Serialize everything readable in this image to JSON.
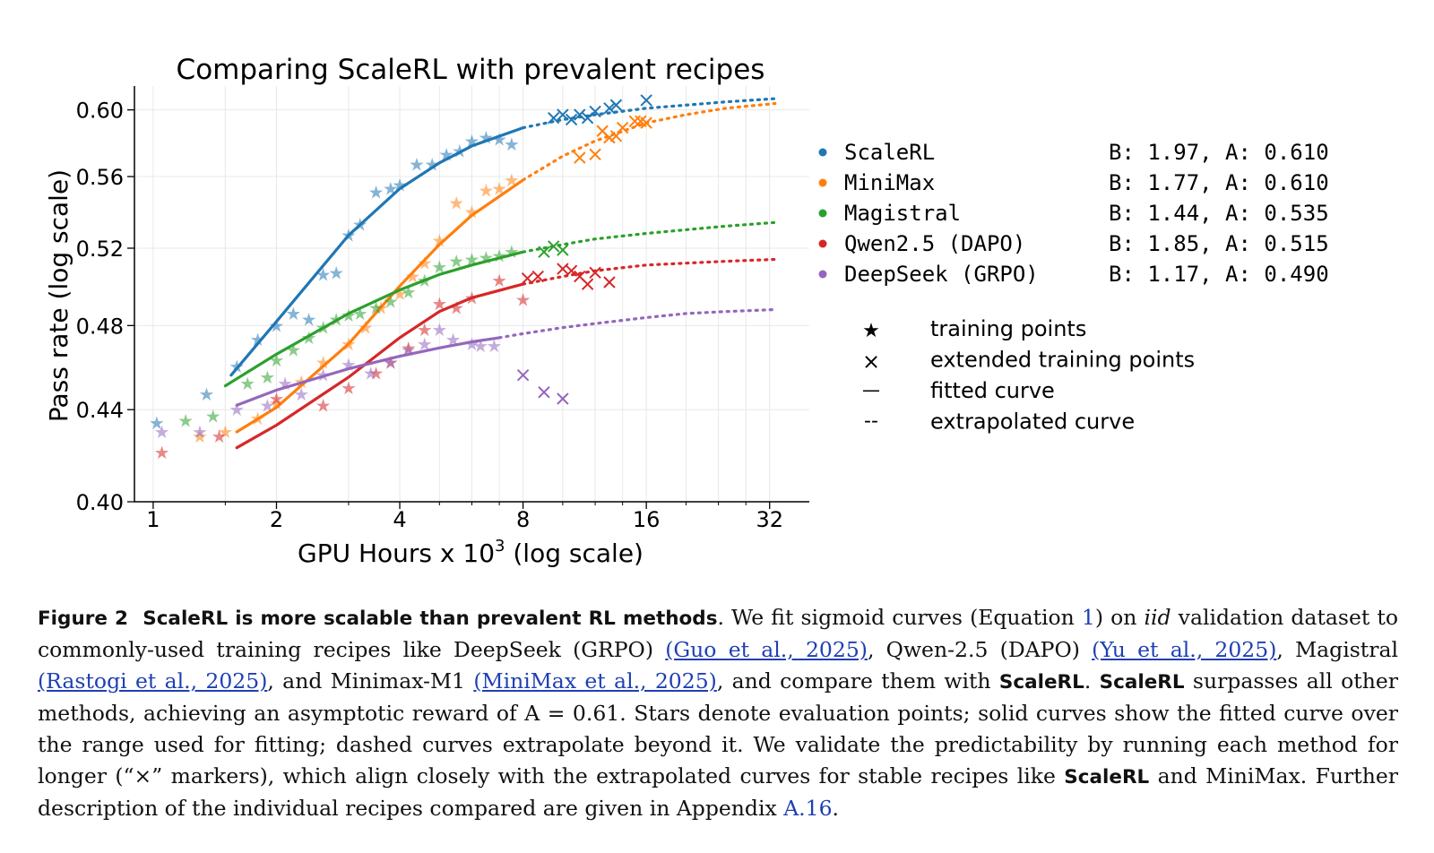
{
  "chart_data": {
    "type": "scatter",
    "title": "Comparing ScaleRL with prevalent recipes",
    "xlabel": "GPU Hours x 10",
    "xlabel_sup": "3",
    "xlabel_suffix": " (log scale)",
    "ylabel": "Pass rate (log scale)",
    "x_scale": "log2",
    "y_scale": "log",
    "xlim": [
      0.9,
      40
    ],
    "ylim": [
      0.4,
      0.615
    ],
    "x_ticks": [
      1,
      2,
      4,
      8,
      16,
      32
    ],
    "x_tick_labels": [
      "1",
      "2",
      "4",
      "8",
      "16",
      "32"
    ],
    "y_ticks": [
      0.4,
      0.44,
      0.48,
      0.52,
      0.56,
      0.6
    ],
    "y_tick_labels": [
      "0.40",
      "0.44",
      "0.48",
      "0.52",
      "0.56",
      "0.60"
    ],
    "grid": true,
    "legend_position": "right",
    "series": [
      {
        "name": "ScaleRL",
        "params": "B: 1.97, A: 0.610",
        "color": "#1f77b4",
        "fit_range": [
          1.55,
          8
        ],
        "extrap_end": 33,
        "fit_curve": {
          "x": [
            1.55,
            2,
            3,
            4,
            5,
            6,
            8
          ],
          "y": [
            0.456,
            0.482,
            0.527,
            0.553,
            0.568,
            0.578,
            0.589
          ]
        },
        "extrap_curve": {
          "x": [
            8,
            10,
            12,
            16,
            20,
            25,
            33
          ],
          "y": [
            0.589,
            0.594,
            0.597,
            0.601,
            0.603,
            0.605,
            0.607
          ]
        },
        "training_points": {
          "x": [
            1.02,
            1.35,
            1.6,
            1.8,
            2.0,
            2.2,
            2.4,
            2.6,
            2.8,
            3.0,
            3.2,
            3.5,
            3.8,
            4.0,
            4.4,
            4.8,
            5.2,
            5.6,
            6.0,
            6.5,
            7.0,
            7.5
          ],
          "y": [
            0.434,
            0.447,
            0.46,
            0.473,
            0.48,
            0.486,
            0.483,
            0.506,
            0.507,
            0.527,
            0.533,
            0.551,
            0.553,
            0.555,
            0.567,
            0.567,
            0.573,
            0.575,
            0.581,
            0.583,
            0.582,
            0.579
          ]
        },
        "extended_points": {
          "x": [
            9.5,
            10,
            10.5,
            11,
            11.5,
            12,
            13,
            13.5,
            16
          ],
          "y": [
            0.595,
            0.597,
            0.594,
            0.597,
            0.595,
            0.599,
            0.601,
            0.603,
            0.606
          ]
        }
      },
      {
        "name": "MiniMax",
        "params": "B: 1.77, A: 0.610",
        "color": "#ff7f0e",
        "fit_range": [
          1.6,
          8
        ],
        "extrap_end": 33,
        "fit_curve": {
          "x": [
            1.6,
            2,
            3,
            4,
            5,
            6,
            8
          ],
          "y": [
            0.43,
            0.441,
            0.471,
            0.5,
            0.522,
            0.538,
            0.558
          ]
        },
        "extrap_curve": {
          "x": [
            8,
            10,
            12,
            16,
            20,
            25,
            33
          ],
          "y": [
            0.558,
            0.572,
            0.581,
            0.592,
            0.597,
            0.601,
            0.604
          ]
        },
        "training_points": {
          "x": [
            1.3,
            1.5,
            1.8,
            2.0,
            2.3,
            2.6,
            3.0,
            3.3,
            3.6,
            4.0,
            4.3,
            4.6,
            5.0,
            5.5,
            6.0,
            6.5,
            7.0,
            7.5
          ],
          "y": [
            0.428,
            0.43,
            0.436,
            0.443,
            0.453,
            0.462,
            0.471,
            0.479,
            0.489,
            0.496,
            0.505,
            0.512,
            0.524,
            0.545,
            0.54,
            0.552,
            0.553,
            0.558
          ]
        },
        "extended_points": {
          "x": [
            11,
            12,
            12.5,
            13,
            13.5,
            14,
            15,
            15.5,
            16
          ],
          "y": [
            0.571,
            0.573,
            0.587,
            0.583,
            0.584,
            0.589,
            0.593,
            0.593,
            0.592
          ]
        }
      },
      {
        "name": "Magistral",
        "params": "B: 1.44, A: 0.535",
        "color": "#2ca02c",
        "fit_range": [
          1.5,
          8
        ],
        "extrap_end": 33,
        "fit_curve": {
          "x": [
            1.5,
            2,
            3,
            4,
            5,
            6,
            8
          ],
          "y": [
            0.451,
            0.466,
            0.486,
            0.498,
            0.506,
            0.511,
            0.518
          ]
        },
        "extrap_curve": {
          "x": [
            8,
            10,
            12,
            16,
            20,
            25,
            33
          ],
          "y": [
            0.518,
            0.522,
            0.525,
            0.528,
            0.53,
            0.532,
            0.534
          ]
        },
        "training_points": {
          "x": [
            1.2,
            1.4,
            1.7,
            1.9,
            2.0,
            2.2,
            2.4,
            2.6,
            2.8,
            3.0,
            3.2,
            3.5,
            3.8,
            4.2,
            4.6,
            5.0,
            5.5,
            6.0,
            6.5,
            7.0,
            7.5
          ],
          "y": [
            0.435,
            0.437,
            0.452,
            0.455,
            0.463,
            0.468,
            0.474,
            0.479,
            0.483,
            0.485,
            0.486,
            0.489,
            0.492,
            0.497,
            0.503,
            0.51,
            0.513,
            0.514,
            0.515,
            0.516,
            0.518
          ]
        },
        "extended_points": {
          "x": [
            9,
            9.5,
            10
          ],
          "y": [
            0.518,
            0.521,
            0.519
          ]
        }
      },
      {
        "name": "Qwen2.5 (DAPO)",
        "params": "B: 1.85, A: 0.515",
        "color": "#d62728",
        "fit_range": [
          1.6,
          8
        ],
        "extrap_end": 33,
        "fit_curve": {
          "x": [
            1.6,
            2,
            3,
            4,
            5,
            6,
            8
          ],
          "y": [
            0.423,
            0.433,
            0.455,
            0.474,
            0.487,
            0.494,
            0.501
          ]
        },
        "extrap_curve": {
          "x": [
            8,
            10,
            12,
            16,
            20,
            25,
            33
          ],
          "y": [
            0.501,
            0.505,
            0.508,
            0.511,
            0.512,
            0.513,
            0.514
          ]
        },
        "training_points": {
          "x": [
            1.05,
            1.45,
            2.0,
            2.6,
            3.0,
            3.5,
            3.8,
            4.2,
            4.6,
            5.0,
            5.5,
            6.0,
            7.0,
            8.0
          ],
          "y": [
            0.421,
            0.428,
            0.445,
            0.442,
            0.45,
            0.457,
            0.462,
            0.469,
            0.478,
            0.491,
            0.489,
            0.494,
            0.503,
            0.493
          ]
        },
        "extended_points": {
          "x": [
            8.2,
            8.7,
            10,
            10.5,
            11,
            11.5,
            12,
            13
          ],
          "y": [
            0.504,
            0.505,
            0.509,
            0.508,
            0.505,
            0.501,
            0.507,
            0.502
          ]
        }
      },
      {
        "name": "DeepSeek (GRPO)",
        "params": "B: 1.17, A: 0.490",
        "color": "#9467bd",
        "fit_range": [
          1.6,
          7
        ],
        "extrap_end": 33,
        "fit_curve": {
          "x": [
            1.6,
            2,
            3,
            4,
            5,
            6,
            7
          ],
          "y": [
            0.442,
            0.449,
            0.459,
            0.465,
            0.469,
            0.472,
            0.474
          ]
        },
        "extrap_curve": {
          "x": [
            7,
            8,
            10,
            12,
            16,
            20,
            25,
            33
          ],
          "y": [
            0.474,
            0.476,
            0.479,
            0.481,
            0.484,
            0.486,
            0.487,
            0.488
          ]
        },
        "training_points": {
          "x": [
            1.05,
            1.3,
            1.6,
            1.9,
            2.1,
            2.3,
            2.6,
            3.0,
            3.4,
            3.8,
            4.2,
            4.6,
            5.0,
            5.4,
            6.0,
            6.3,
            6.8
          ],
          "y": [
            0.43,
            0.43,
            0.44,
            0.442,
            0.452,
            0.447,
            0.456,
            0.461,
            0.457,
            0.462,
            0.468,
            0.471,
            0.478,
            0.473,
            0.471,
            0.47,
            0.47
          ]
        },
        "extended_points": {
          "x": [
            8,
            9,
            10
          ],
          "y": [
            0.456,
            0.448,
            0.445
          ]
        }
      }
    ],
    "marker_legend": [
      {
        "symbol": "★",
        "label": "training points"
      },
      {
        "symbol": "×",
        "label": "extended training points"
      },
      {
        "symbol": "—",
        "label": "fitted curve"
      },
      {
        "symbol": "--",
        "label": "extrapolated curve"
      }
    ]
  },
  "caption": {
    "label": "Figure 2",
    "heading": "ScaleRL is more scalable than prevalent RL methods",
    "t1": ". We fit sigmoid curves (Equation ",
    "eq_ref": "1",
    "t2": ") on ",
    "iid": "iid",
    "t3": " validation dataset to commonly-used training recipes like DeepSeek (GRPO) ",
    "ref1": "(Guo et al., 2025)",
    "t4": ", Qwen-2.5 (DAPO) ",
    "ref2": "(Yu et al., 2025)",
    "t5": ", Magistral ",
    "ref3": "(Rastogi et al., 2025)",
    "t6": ", and Minimax-M1 ",
    "ref4": "(MiniMax et al., 2025)",
    "t7": ", and compare them with ",
    "scalerl_a": "ScaleRL",
    "t8": ". ",
    "scalerl_b": "ScaleRL",
    "t9": " surpasses all other methods, achieving an asymptotic reward of A = 0.61. Stars denote evaluation points; solid curves show the fitted curve over the range used for fitting; dashed curves extrapolate beyond it. We validate the predictability by running each method for longer (“×” markers), which align closely with the extrapolated curves for stable recipes like ",
    "scalerl_c": "ScaleRL",
    "t10": " and MiniMax. Further description of the individual recipes compared are given in Appendix ",
    "appendix_ref": "A.16",
    "t11": "."
  }
}
